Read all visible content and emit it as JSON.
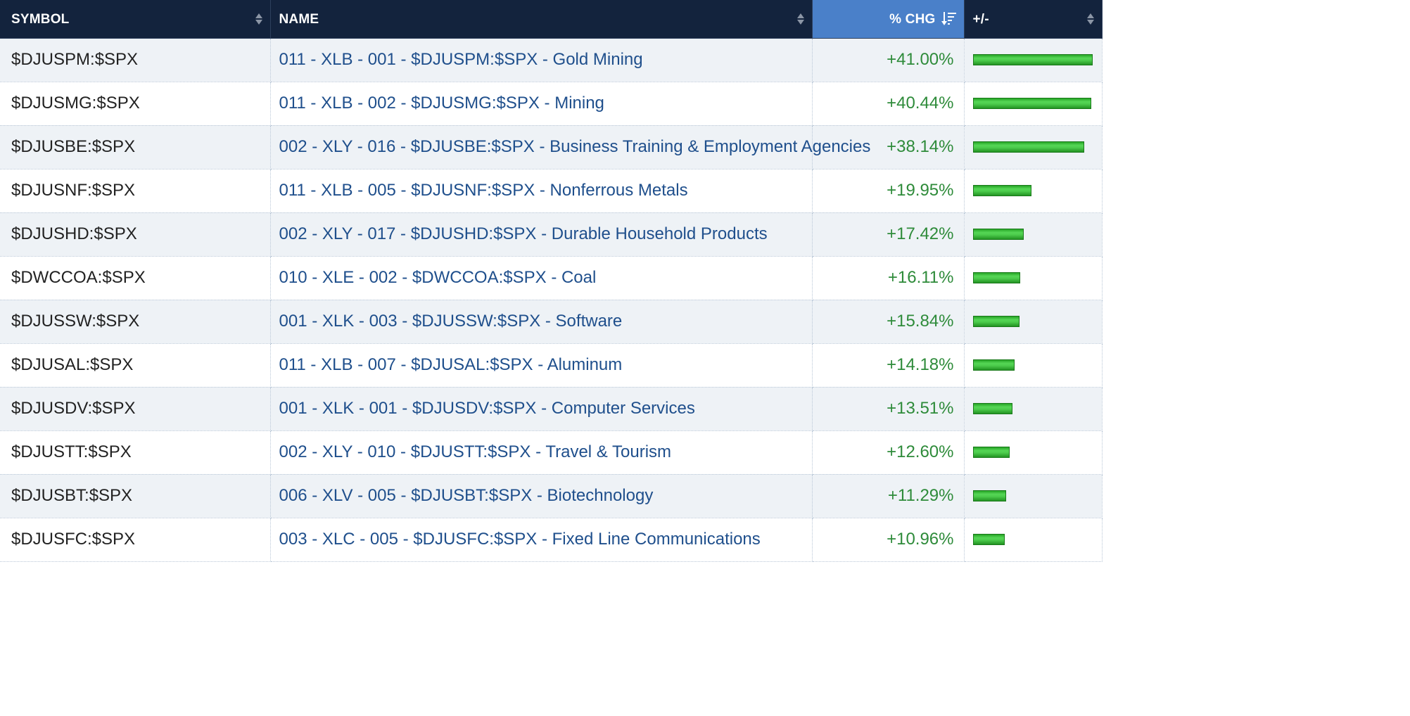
{
  "columns": {
    "symbol": "SYMBOL",
    "name": "NAME",
    "pct_chg": "% CHG",
    "plus_minus": "+/-"
  },
  "sort": {
    "column": "pct_chg",
    "direction": "descending"
  },
  "colors": {
    "header_bg": "#13233d",
    "active_header_bg": "#4a80c9",
    "positive": "#2e8b3a",
    "link": "#1f4f8c",
    "bar": "#3fbf3f"
  },
  "bar_scale_max_pct": 41.0,
  "rows": [
    {
      "symbol": "$DJUSPM:$SPX",
      "name": "011 - XLB - 001 - $DJUSPM:$SPX - Gold Mining",
      "pct_chg": "+41.00%",
      "value": 41.0
    },
    {
      "symbol": "$DJUSMG:$SPX",
      "name": "011 - XLB - 002 - $DJUSMG:$SPX - Mining",
      "pct_chg": "+40.44%",
      "value": 40.44
    },
    {
      "symbol": "$DJUSBE:$SPX",
      "name": "002 - XLY - 016 - $DJUSBE:$SPX - Business Training & Employment Agencies",
      "pct_chg": "+38.14%",
      "value": 38.14
    },
    {
      "symbol": "$DJUSNF:$SPX",
      "name": "011 - XLB - 005 - $DJUSNF:$SPX - Nonferrous Metals",
      "pct_chg": "+19.95%",
      "value": 19.95
    },
    {
      "symbol": "$DJUSHD:$SPX",
      "name": "002 - XLY - 017 - $DJUSHD:$SPX - Durable Household Products",
      "pct_chg": "+17.42%",
      "value": 17.42
    },
    {
      "symbol": "$DWCCOA:$SPX",
      "name": "010 - XLE - 002 - $DWCCOA:$SPX - Coal",
      "pct_chg": "+16.11%",
      "value": 16.11
    },
    {
      "symbol": "$DJUSSW:$SPX",
      "name": "001 - XLK - 003 - $DJUSSW:$SPX - Software",
      "pct_chg": "+15.84%",
      "value": 15.84
    },
    {
      "symbol": "$DJUSAL:$SPX",
      "name": "011 - XLB - 007 - $DJUSAL:$SPX - Aluminum",
      "pct_chg": "+14.18%",
      "value": 14.18
    },
    {
      "symbol": "$DJUSDV:$SPX",
      "name": "001 - XLK - 001 - $DJUSDV:$SPX - Computer Services",
      "pct_chg": "+13.51%",
      "value": 13.51
    },
    {
      "symbol": "$DJUSTT:$SPX",
      "name": "002 - XLY - 010 - $DJUSTT:$SPX - Travel & Tourism",
      "pct_chg": "+12.60%",
      "value": 12.6
    },
    {
      "symbol": "$DJUSBT:$SPX",
      "name": "006 - XLV - 005 - $DJUSBT:$SPX - Biotechnology",
      "pct_chg": "+11.29%",
      "value": 11.29
    },
    {
      "symbol": "$DJUSFC:$SPX",
      "name": "003 - XLC - 005 - $DJUSFC:$SPX - Fixed Line Communications",
      "pct_chg": "+10.96%",
      "value": 10.96
    }
  ]
}
